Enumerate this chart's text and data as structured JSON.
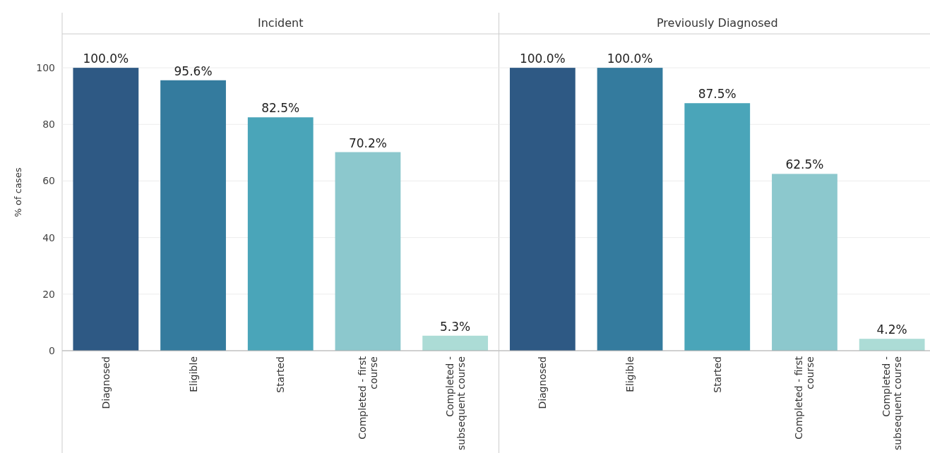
{
  "chart_data": [
    {
      "type": "bar",
      "title": "Incident",
      "ylabel": "% of cases",
      "categories": [
        "Diagnosed",
        "Eligible",
        "Started",
        "Completed - first course",
        "Completed - subsequent course"
      ],
      "values": [
        100.0,
        95.6,
        82.5,
        70.2,
        5.3
      ],
      "value_labels": [
        "100.0%",
        "95.6%",
        "82.5%",
        "70.2%",
        "5.3%"
      ],
      "colors": [
        "#2e5984",
        "#347b9e",
        "#4aa5b9",
        "#8cc8cd",
        "#acdcd6"
      ],
      "ylim": [
        0,
        112
      ],
      "yticks": [
        0,
        20,
        40,
        60,
        80,
        100
      ],
      "grid": "y"
    },
    {
      "type": "bar",
      "title": "Previously Diagnosed",
      "categories": [
        "Diagnosed",
        "Eligible",
        "Started",
        "Completed - first course",
        "Completed - subsequent course"
      ],
      "values": [
        100.0,
        100.0,
        87.5,
        62.5,
        4.2
      ],
      "value_labels": [
        "100.0%",
        "100.0%",
        "87.5%",
        "62.5%",
        "4.2%"
      ],
      "colors": [
        "#2e5984",
        "#347b9e",
        "#4aa5b9",
        "#8cc8cd",
        "#acdcd6"
      ],
      "ylim": [
        0,
        112
      ],
      "yticks": [
        0,
        20,
        40,
        60,
        80,
        100
      ],
      "grid": "y",
      "tick_labels": "x"
    }
  ]
}
